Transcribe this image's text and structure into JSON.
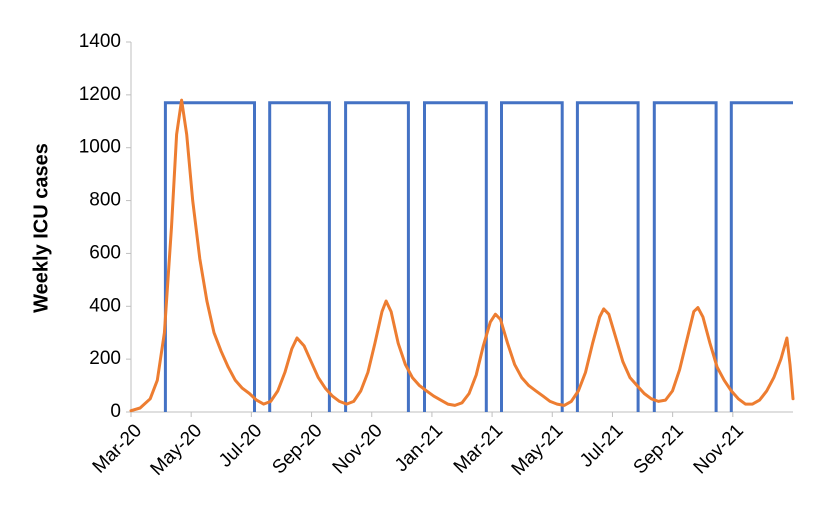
{
  "chart_data": {
    "type": "line",
    "title": "",
    "xlabel": "",
    "ylabel": "Weekly ICU cases",
    "ylim": [
      0,
      1400
    ],
    "yticks": [
      0,
      200,
      400,
      600,
      800,
      1000,
      1200,
      1400
    ],
    "x_tick_labels": [
      "Mar-20",
      "May-20",
      "Jul-20",
      "Sep-20",
      "Nov-20",
      "Jan-21",
      "Mar-21",
      "May-21",
      "Jul-21",
      "Sep-21",
      "Nov-21"
    ],
    "x_range": [
      "2020-03-01",
      "2021-12-15"
    ],
    "grid": false,
    "legend": "none",
    "series": [
      {
        "color": "#4472C4",
        "style": "step",
        "values_on": 1170,
        "values_off": 0,
        "on_intervals": [
          [
            "2020-04-04",
            "2020-07-01"
          ],
          [
            "2020-07-16",
            "2020-09-13"
          ],
          [
            "2020-09-29",
            "2020-11-30"
          ],
          [
            "2020-12-16",
            "2021-02-15"
          ],
          [
            "2021-03-02",
            "2021-05-01"
          ],
          [
            "2021-05-16",
            "2021-07-15"
          ],
          [
            "2021-07-31",
            "2021-09-30"
          ],
          [
            "2021-10-15",
            "2021-12-15"
          ]
        ]
      },
      {
        "color": "#ED7D31",
        "style": "line",
        "points": [
          [
            "2020-03-01",
            5
          ],
          [
            "2020-03-10",
            15
          ],
          [
            "2020-03-20",
            50
          ],
          [
            "2020-03-27",
            120
          ],
          [
            "2020-04-03",
            300
          ],
          [
            "2020-04-10",
            700
          ],
          [
            "2020-04-15",
            1050
          ],
          [
            "2020-04-20",
            1180
          ],
          [
            "2020-04-25",
            1050
          ],
          [
            "2020-05-01",
            800
          ],
          [
            "2020-05-08",
            580
          ],
          [
            "2020-05-15",
            420
          ],
          [
            "2020-05-22",
            300
          ],
          [
            "2020-05-29",
            230
          ],
          [
            "2020-06-05",
            170
          ],
          [
            "2020-06-12",
            120
          ],
          [
            "2020-06-19",
            90
          ],
          [
            "2020-06-26",
            70
          ],
          [
            "2020-07-03",
            45
          ],
          [
            "2020-07-10",
            30
          ],
          [
            "2020-07-17",
            40
          ],
          [
            "2020-07-24",
            80
          ],
          [
            "2020-07-31",
            150
          ],
          [
            "2020-08-07",
            240
          ],
          [
            "2020-08-12",
            280
          ],
          [
            "2020-08-19",
            250
          ],
          [
            "2020-08-26",
            190
          ],
          [
            "2020-09-02",
            130
          ],
          [
            "2020-09-09",
            90
          ],
          [
            "2020-09-16",
            60
          ],
          [
            "2020-09-23",
            40
          ],
          [
            "2020-09-30",
            30
          ],
          [
            "2020-10-07",
            40
          ],
          [
            "2020-10-14",
            80
          ],
          [
            "2020-10-21",
            150
          ],
          [
            "2020-10-28",
            260
          ],
          [
            "2020-11-04",
            380
          ],
          [
            "2020-11-08",
            420
          ],
          [
            "2020-11-13",
            380
          ],
          [
            "2020-11-20",
            260
          ],
          [
            "2020-11-27",
            180
          ],
          [
            "2020-12-04",
            130
          ],
          [
            "2020-12-11",
            100
          ],
          [
            "2020-12-18",
            80
          ],
          [
            "2020-12-25",
            60
          ],
          [
            "2021-01-01",
            45
          ],
          [
            "2021-01-08",
            30
          ],
          [
            "2021-01-15",
            25
          ],
          [
            "2021-01-22",
            35
          ],
          [
            "2021-01-29",
            70
          ],
          [
            "2021-02-05",
            140
          ],
          [
            "2021-02-12",
            250
          ],
          [
            "2021-02-19",
            340
          ],
          [
            "2021-02-24",
            370
          ],
          [
            "2021-03-01",
            350
          ],
          [
            "2021-03-08",
            260
          ],
          [
            "2021-03-15",
            180
          ],
          [
            "2021-03-22",
            130
          ],
          [
            "2021-03-29",
            100
          ],
          [
            "2021-04-05",
            80
          ],
          [
            "2021-04-12",
            60
          ],
          [
            "2021-04-19",
            40
          ],
          [
            "2021-04-26",
            30
          ],
          [
            "2021-05-03",
            25
          ],
          [
            "2021-05-10",
            40
          ],
          [
            "2021-05-17",
            80
          ],
          [
            "2021-05-24",
            150
          ],
          [
            "2021-05-31",
            260
          ],
          [
            "2021-06-07",
            360
          ],
          [
            "2021-06-11",
            390
          ],
          [
            "2021-06-16",
            370
          ],
          [
            "2021-06-23",
            280
          ],
          [
            "2021-06-30",
            190
          ],
          [
            "2021-07-07",
            130
          ],
          [
            "2021-07-14",
            100
          ],
          [
            "2021-07-21",
            70
          ],
          [
            "2021-07-28",
            50
          ],
          [
            "2021-08-04",
            40
          ],
          [
            "2021-08-11",
            45
          ],
          [
            "2021-08-18",
            80
          ],
          [
            "2021-08-25",
            160
          ],
          [
            "2021-09-01",
            270
          ],
          [
            "2021-09-08",
            380
          ],
          [
            "2021-09-12",
            395
          ],
          [
            "2021-09-17",
            360
          ],
          [
            "2021-09-24",
            260
          ],
          [
            "2021-10-01",
            170
          ],
          [
            "2021-10-08",
            120
          ],
          [
            "2021-10-15",
            80
          ],
          [
            "2021-10-22",
            50
          ],
          [
            "2021-10-29",
            30
          ],
          [
            "2021-11-05",
            30
          ],
          [
            "2021-11-12",
            45
          ],
          [
            "2021-11-19",
            80
          ],
          [
            "2021-11-26",
            130
          ],
          [
            "2021-12-03",
            200
          ],
          [
            "2021-12-09",
            280
          ],
          [
            "2021-12-12",
            180
          ],
          [
            "2021-12-15",
            50
          ]
        ]
      }
    ]
  }
}
